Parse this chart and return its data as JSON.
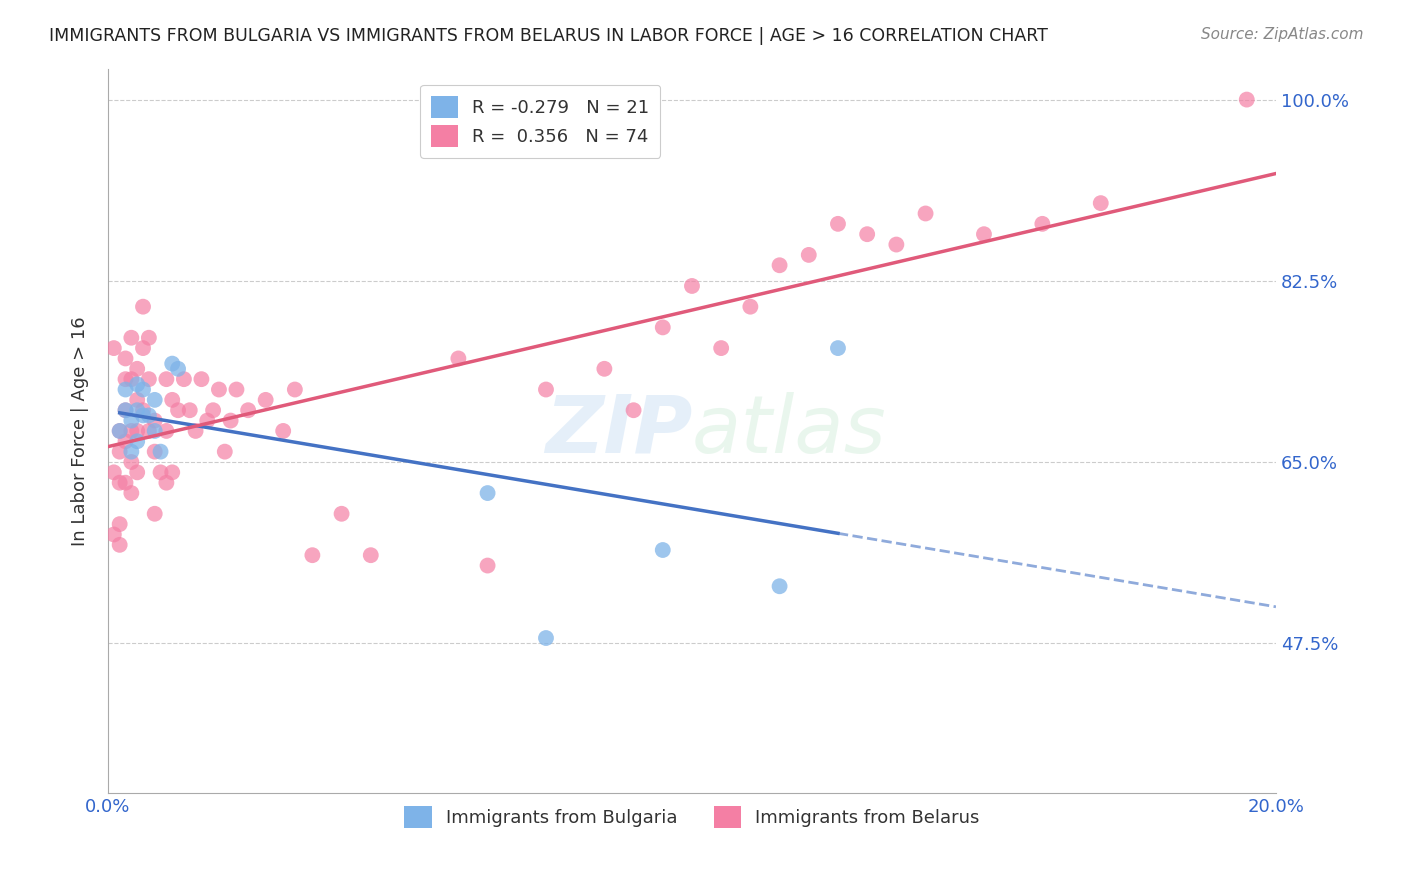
{
  "title": "IMMIGRANTS FROM BULGARIA VS IMMIGRANTS FROM BELARUS IN LABOR FORCE | AGE > 16 CORRELATION CHART",
  "source": "Source: ZipAtlas.com",
  "ylabel": "In Labor Force | Age > 16",
  "xlim": [
    0.0,
    0.2
  ],
  "ylim": [
    0.33,
    1.03
  ],
  "yticks": [
    0.475,
    0.65,
    0.825,
    1.0
  ],
  "ytick_labels": [
    "47.5%",
    "65.0%",
    "82.5%",
    "100.0%"
  ],
  "legend_R1": "R = -0.279",
  "legend_N1": "N = 21",
  "legend_R2": "R =  0.356",
  "legend_N2": "N = 74",
  "color_bulgaria": "#7EB3E8",
  "color_belarus": "#F47FA4",
  "color_trend_bul": "#4472C4",
  "color_trend_bel": "#E05A7A",
  "color_axis_labels": "#3366CC",
  "bulgaria_x": [
    0.002,
    0.003,
    0.003,
    0.004,
    0.004,
    0.005,
    0.005,
    0.005,
    0.006,
    0.006,
    0.007,
    0.008,
    0.008,
    0.009,
    0.011,
    0.012,
    0.065,
    0.075,
    0.095,
    0.115,
    0.125
  ],
  "bulgaria_y": [
    0.68,
    0.7,
    0.72,
    0.66,
    0.69,
    0.67,
    0.7,
    0.725,
    0.695,
    0.72,
    0.695,
    0.71,
    0.68,
    0.66,
    0.745,
    0.74,
    0.62,
    0.48,
    0.565,
    0.53,
    0.76
  ],
  "belarus_x": [
    0.001,
    0.001,
    0.001,
    0.002,
    0.002,
    0.002,
    0.002,
    0.002,
    0.003,
    0.003,
    0.003,
    0.003,
    0.003,
    0.004,
    0.004,
    0.004,
    0.004,
    0.004,
    0.005,
    0.005,
    0.005,
    0.005,
    0.006,
    0.006,
    0.006,
    0.007,
    0.007,
    0.007,
    0.008,
    0.008,
    0.008,
    0.009,
    0.01,
    0.01,
    0.01,
    0.011,
    0.011,
    0.012,
    0.013,
    0.014,
    0.015,
    0.016,
    0.017,
    0.018,
    0.019,
    0.02,
    0.021,
    0.022,
    0.024,
    0.027,
    0.03,
    0.032,
    0.035,
    0.04,
    0.045,
    0.06,
    0.065,
    0.075,
    0.085,
    0.09,
    0.095,
    0.1,
    0.105,
    0.11,
    0.115,
    0.12,
    0.125,
    0.13,
    0.135,
    0.14,
    0.15,
    0.16,
    0.17,
    0.195
  ],
  "belarus_y": [
    0.76,
    0.64,
    0.58,
    0.68,
    0.66,
    0.63,
    0.59,
    0.57,
    0.75,
    0.73,
    0.7,
    0.67,
    0.63,
    0.77,
    0.73,
    0.68,
    0.65,
    0.62,
    0.74,
    0.71,
    0.68,
    0.64,
    0.8,
    0.76,
    0.7,
    0.77,
    0.73,
    0.68,
    0.69,
    0.66,
    0.6,
    0.64,
    0.73,
    0.68,
    0.63,
    0.71,
    0.64,
    0.7,
    0.73,
    0.7,
    0.68,
    0.73,
    0.69,
    0.7,
    0.72,
    0.66,
    0.69,
    0.72,
    0.7,
    0.71,
    0.68,
    0.72,
    0.56,
    0.6,
    0.56,
    0.75,
    0.55,
    0.72,
    0.74,
    0.7,
    0.78,
    0.82,
    0.76,
    0.8,
    0.84,
    0.85,
    0.88,
    0.87,
    0.86,
    0.89,
    0.87,
    0.88,
    0.9,
    1.0
  ],
  "bg_color": "#FFFFFF",
  "grid_color": "#CCCCCC",
  "watermark_zip": "ZIP",
  "watermark_atlas": "atlas"
}
